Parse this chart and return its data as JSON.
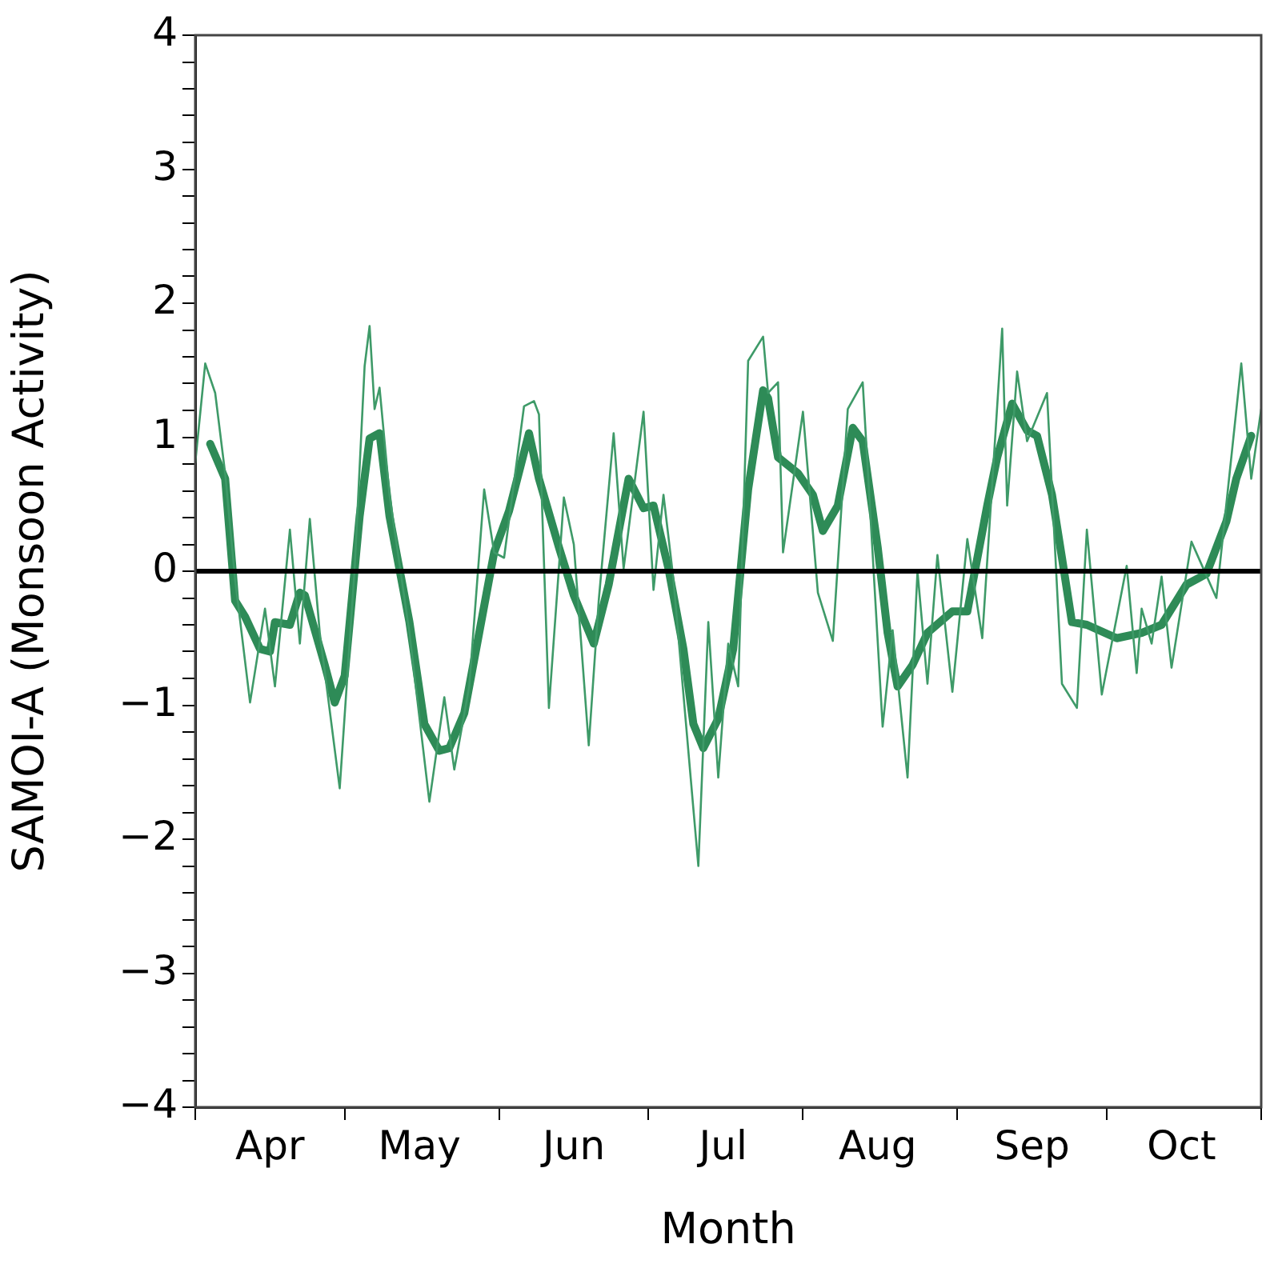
{
  "chart_data": {
    "type": "line",
    "xlabel": "Month",
    "ylabel": "SAMOI-A (Monsoon Activity)",
    "xlim": [
      "--04-01",
      "--11-01"
    ],
    "xticks": [
      {
        "value": "--04-01",
        "label": null
      },
      {
        "value": "--04-16",
        "label": "Apr"
      },
      {
        "value": "--05-01",
        "label": null
      },
      {
        "value": "--05-16",
        "label": "May"
      },
      {
        "value": "--06-01",
        "label": null
      },
      {
        "value": "--06-16",
        "label": "Jun"
      },
      {
        "value": "--07-01",
        "label": null
      },
      {
        "value": "--07-16",
        "label": "Jul"
      },
      {
        "value": "--08-01",
        "label": null
      },
      {
        "value": "--08-16",
        "label": "Aug"
      },
      {
        "value": "--09-01",
        "label": null
      },
      {
        "value": "--09-16",
        "label": "Sep"
      },
      {
        "value": "--10-01",
        "label": null
      },
      {
        "value": "--10-16",
        "label": "Oct"
      },
      {
        "value": "--11-01",
        "label": null
      }
    ],
    "ylim": [
      -4,
      4
    ],
    "yticks": [
      -4,
      {
        "value": -3.8,
        "label": null
      },
      {
        "value": -3.6,
        "label": null
      },
      {
        "value": -3.4,
        "label": null
      },
      {
        "value": -3.2,
        "label": null
      },
      -3,
      {
        "value": -2.8,
        "label": null
      },
      {
        "value": -2.6,
        "label": null
      },
      {
        "value": -2.4,
        "label": null
      },
      {
        "value": -2.2,
        "label": null
      },
      -2,
      {
        "value": -1.8,
        "label": null
      },
      {
        "value": -1.6,
        "label": null
      },
      {
        "value": -1.4,
        "label": null
      },
      {
        "value": -1.2,
        "label": null
      },
      -1,
      {
        "value": -0.8,
        "label": null
      },
      {
        "value": -0.6,
        "label": null
      },
      {
        "value": -0.4,
        "label": null
      },
      {
        "value": -0.2,
        "label": null
      },
      0,
      {
        "value": 0.2,
        "label": null
      },
      {
        "value": 0.4,
        "label": null
      },
      {
        "value": 0.6,
        "label": null
      },
      {
        "value": 0.8,
        "label": null
      },
      1,
      {
        "value": 1.2,
        "label": null
      },
      {
        "value": 1.4,
        "label": null
      },
      {
        "value": 1.6,
        "label": null
      },
      {
        "value": 1.8,
        "label": null
      },
      2,
      {
        "value": 2.2,
        "label": null
      },
      {
        "value": 2.4,
        "label": null
      },
      {
        "value": 2.6,
        "label": null
      },
      {
        "value": 2.8,
        "label": null
      },
      3,
      {
        "value": 3.2,
        "label": null
      },
      {
        "value": 3.4,
        "label": null
      },
      {
        "value": 3.6,
        "label": null
      },
      {
        "value": 3.8,
        "label": null
      },
      4
    ],
    "grid": false,
    "legend": false,
    "marker": "none",
    "line_style": "solid",
    "ref_lines": [
      {
        "axis": "y",
        "value": 0,
        "color": "#000000"
      }
    ],
    "series": [
      {
        "color": "#3e9a68",
        "x": [
          "--04-01",
          "--04-03",
          "--04-05",
          "--04-07",
          "--04-09",
          "--04-12",
          "--04-15",
          "--04-17",
          "--04-20",
          "--04-22",
          "--04-24",
          "--04-26",
          "--04-30",
          "--05-03",
          "--05-05",
          "--05-06",
          "--05-07",
          "--05-08",
          "--05-10",
          "--05-14",
          "--05-18",
          "--05-21",
          "--05-23",
          "--05-26",
          "--05-29",
          "--05-31",
          "--06-02",
          "--06-06",
          "--06-08",
          "--06-09",
          "--06-11",
          "--06-13",
          "--06-14",
          "--06-16",
          "--06-19",
          "--06-21",
          "--06-24",
          "--06-26",
          "--06-30",
          "--07-02",
          "--07-04",
          "--07-06",
          "--07-11",
          "--07-13",
          "--07-15",
          "--07-17",
          "--07-19",
          "--07-21",
          "--07-24",
          "--07-25",
          "--07-27",
          "--07-28",
          "--08-01",
          "--08-04",
          "--08-07",
          "--08-10",
          "--08-13",
          "--08-17",
          "--08-19",
          "--08-22",
          "--08-24",
          "--08-26",
          "--08-28",
          "--08-31",
          "--09-03",
          "--09-06",
          "--09-10",
          "--09-11",
          "--09-13",
          "--09-15",
          "--09-19",
          "--09-22",
          "--09-25",
          "--09-27",
          "--09-30",
          "--10-05",
          "--10-07",
          "--10-08",
          "--10-10",
          "--10-12",
          "--10-14",
          "--10-18",
          "--10-23",
          "--10-28",
          "--10-30",
          "--11-01"
        ],
        "values": [
          0.81,
          1.55,
          1.33,
          0.73,
          -0.06,
          -0.98,
          -0.28,
          -0.86,
          0.31,
          -0.54,
          0.39,
          -0.46,
          -1.62,
          0.02,
          1.53,
          1.83,
          1.21,
          1.37,
          0.57,
          -0.46,
          -1.72,
          -0.94,
          -1.48,
          -0.86,
          0.61,
          0.14,
          0.1,
          1.23,
          1.27,
          1.17,
          -1.02,
          0.02,
          0.55,
          0.2,
          -1.3,
          -0.22,
          1.03,
          0.02,
          1.19,
          -0.14,
          0.57,
          -0.06,
          -2.2,
          -0.38,
          -1.54,
          -0.54,
          -0.86,
          1.57,
          1.75,
          1.33,
          1.41,
          0.14,
          1.19,
          -0.16,
          -0.52,
          1.21,
          1.41,
          -1.16,
          -0.44,
          -1.54,
          0.0,
          -0.84,
          0.12,
          -0.9,
          0.24,
          -0.5,
          1.81,
          0.49,
          1.49,
          0.97,
          1.33,
          -0.84,
          -1.02,
          0.31,
          -0.92,
          0.04,
          -0.76,
          -0.28,
          -0.54,
          -0.04,
          -0.72,
          0.22,
          -0.2,
          1.55,
          0.69,
          1.21
        ]
      },
      {
        "color": "#2e8b57",
        "x": [
          "--04-04",
          "--04-07",
          "--04-09",
          "--04-11",
          "--04-14",
          "--04-16",
          "--04-17",
          "--04-20",
          "--04-22",
          "--04-23",
          "--04-27",
          "--04-29",
          "--05-01",
          "--05-04",
          "--05-06",
          "--05-08",
          "--05-10",
          "--05-14",
          "--05-17",
          "--05-20",
          "--05-22",
          "--05-25",
          "--05-28",
          "--05-31",
          "--06-03",
          "--06-07",
          "--06-09",
          "--06-13",
          "--06-16",
          "--06-20",
          "--06-23",
          "--06-27",
          "--06-30",
          "--07-02",
          "--07-05",
          "--07-08",
          "--07-10",
          "--07-12",
          "--07-15",
          "--07-18",
          "--07-21",
          "--07-24",
          "--07-25",
          "--07-27",
          "--07-31",
          "--08-03",
          "--08-05",
          "--08-08",
          "--08-11",
          "--08-13",
          "--08-16",
          "--08-18",
          "--08-20",
          "--08-23",
          "--08-26",
          "--08-31",
          "--09-03",
          "--09-07",
          "--09-09",
          "--09-12",
          "--09-15",
          "--09-17",
          "--09-20",
          "--09-22",
          "--09-24",
          "--09-27",
          "--10-03",
          "--10-08",
          "--10-12",
          "--10-17",
          "--10-21",
          "--10-25",
          "--10-27",
          "--10-30"
        ],
        "values": [
          0.95,
          0.69,
          -0.22,
          -0.34,
          -0.58,
          -0.6,
          -0.38,
          -0.4,
          -0.16,
          -0.18,
          -0.7,
          -0.98,
          -0.78,
          0.41,
          0.99,
          1.03,
          0.41,
          -0.38,
          -1.14,
          -1.34,
          -1.32,
          -1.06,
          -0.46,
          0.14,
          0.45,
          1.03,
          0.69,
          0.18,
          -0.18,
          -0.54,
          -0.1,
          0.69,
          0.47,
          0.49,
          0.02,
          -0.58,
          -1.14,
          -1.32,
          -1.1,
          -0.58,
          0.61,
          1.35,
          1.29,
          0.85,
          0.73,
          0.57,
          0.3,
          0.49,
          1.07,
          0.97,
          0.18,
          -0.46,
          -0.86,
          -0.7,
          -0.46,
          -0.3,
          -0.3,
          0.49,
          0.85,
          1.25,
          1.05,
          1.01,
          0.57,
          0.1,
          -0.38,
          -0.4,
          -0.5,
          -0.46,
          -0.4,
          -0.1,
          -0.02,
          0.37,
          0.69,
          1.01
        ]
      }
    ]
  }
}
